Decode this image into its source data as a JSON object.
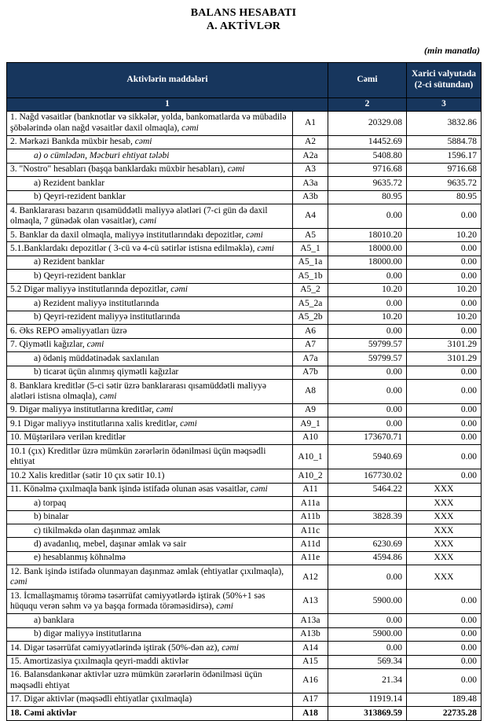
{
  "title": {
    "line1": "BALANS HESABATI",
    "line2": "A. AKTİVLƏR"
  },
  "unit_note": "(min manatla)",
  "colors": {
    "header_bg": "#17365D",
    "header_text": "#FFFFFF",
    "border": "#000000"
  },
  "table": {
    "headers": {
      "items": "Aktivlərin  maddələri",
      "total": "Cəmi",
      "foreign": "Xarici valyutada (2-ci sütundan)",
      "col1": "1",
      "col2": "2",
      "col3": "3"
    },
    "rows": [
      {
        "name": "1. Nağd vəsaitlər (banknotlar və sikkələr, yolda, bankomatlarda və mübadilə şöbələrində olan nağd vəsaitlər daxil olmaqla), ",
        "italic": "cəmi",
        "code": "A1",
        "total": "20329.08",
        "foreign": "3832.86"
      },
      {
        "name": "2. Mərkəzi Bankda müxbir hesab, ",
        "italic": "cəmi",
        "code": "A2",
        "total": "14452.69",
        "foreign": "5884.78"
      },
      {
        "name": "a) o cümlədən, Məcburi ehtiyat tələbi",
        "full_italic": true,
        "indent": true,
        "code": "A2a",
        "total": "5408.80",
        "foreign": "1596.17"
      },
      {
        "name": "3. \"Nostro\" hesabları (başqa banklardakı müxbir hesabları), ",
        "italic": "cəmi",
        "code": "A3",
        "total": "9716.68",
        "foreign": "9716.68"
      },
      {
        "name": "a) Rezident banklar",
        "indent": true,
        "code": "A3a",
        "total": "9635.72",
        "foreign": "9635.72"
      },
      {
        "name": "b) Qeyri-rezident banklar",
        "indent": true,
        "code": "A3b",
        "total": "80.95",
        "foreign": "80.95"
      },
      {
        "name": "4. Banklararası bazarın qısamüddətli maliyyə alətləri (7-ci gün də daxil olmaqla, 7 günədək olan vəsaitlər), ",
        "italic": "cəmi",
        "code": "A4",
        "total": "0.00",
        "foreign": "0.00"
      },
      {
        "name": "5. Banklar da daxil olmaqla, maliyyə institutlarındakı depozitlər, ",
        "italic": "cəmi",
        "code": "A5",
        "total": "18010.20",
        "foreign": "10.20"
      },
      {
        "name": "5.1.Banklardakı depozitlər ( 3-cü və 4-cü sətirlər istisna edilməklə), ",
        "italic": "cəmi",
        "code": "A5_1",
        "total": "18000.00",
        "foreign": "0.00"
      },
      {
        "name": "a) Rezident banklar",
        "indent": true,
        "code": "A5_1a",
        "total": "18000.00",
        "foreign": "0.00"
      },
      {
        "name": "b) Qeyri-rezident banklar",
        "indent": true,
        "code": "A5_1b",
        "total": "0.00",
        "foreign": "0.00"
      },
      {
        "name": "5.2 Digər maliyyə institutlarında depozitlər, ",
        "italic": "cəmi",
        "code": "A5_2",
        "total": "10.20",
        "foreign": "10.20"
      },
      {
        "name": "a) Rezident maliyyə institutlarında",
        "indent": true,
        "code": "A5_2a",
        "total": "0.00",
        "foreign": "0.00"
      },
      {
        "name": "b) Qeyri-rezident maliyyə institutlarında",
        "indent": true,
        "code": "A5_2b",
        "total": "10.20",
        "foreign": "10.20"
      },
      {
        "name": "6. Əks REPO əməliyyatları üzrə",
        "code": "A6",
        "total": "0.00",
        "foreign": "0.00"
      },
      {
        "name": "7. Qiymətli kağızlar, ",
        "italic": "cəmi",
        "code": "A7",
        "total": "59799.57",
        "foreign": "3101.29"
      },
      {
        "name": "a) ödəniş müddətinədək saxlanılan",
        "indent": true,
        "code": "A7a",
        "total": "59799.57",
        "foreign": "3101.29"
      },
      {
        "name": "b) ticarət üçün alınmış qiymətli kağızlar",
        "indent": true,
        "code": "A7b",
        "total": "0.00",
        "foreign": "0.00"
      },
      {
        "name": "8. Banklara kreditlər (5-ci sətir üzrə banklararası qısamüddətli maliyyə alətləri istisna olmaqla), ",
        "italic": "cəmi",
        "code": "A8",
        "total": "0.00",
        "foreign": "0.00"
      },
      {
        "name": "9. Digər maliyyə institutlarına kreditlər, ",
        "italic": "cəmi",
        "code": "A9",
        "total": "0.00",
        "foreign": "0.00"
      },
      {
        "name": "9.1 Digər maliyyə institutlarına xalis kreditlər, ",
        "italic": "cəmi",
        "code": "A9_1",
        "total": "0.00",
        "foreign": "0.00"
      },
      {
        "name": "10. Müştərilərə verilən kreditlər",
        "code": "A10",
        "total": "173670.71",
        "foreign": "0.00"
      },
      {
        "name": "10.1 (çıx) Kreditlər üzrə mümkün zərərlərin ödənilməsi üçün məqsədli ehtiyat",
        "code": "A10_1",
        "total": "5940.69",
        "foreign": "0.00"
      },
      {
        "name": "10.2 Xalis kreditlər (sətir 10 çıx sətir 10.1)",
        "code": "A10_2",
        "total": "167730.02",
        "foreign": "0.00"
      },
      {
        "name": "11. Könəlmə çıxılmaqla bank işində istifadə olunan əsas vəsaitlər, ",
        "italic": "cəmi",
        "code": "A11",
        "total": "5464.22",
        "foreign": "XXX"
      },
      {
        "name": "a) torpaq",
        "indent": true,
        "code": "A11a",
        "total": "",
        "foreign": "XXX"
      },
      {
        "name": "b) binalar",
        "indent": true,
        "code": "A11b",
        "total": "3828.39",
        "foreign": "XXX"
      },
      {
        "name": "c) tikilməkdə olan daşınmaz əmlak",
        "indent": true,
        "code": "A11c",
        "total": "",
        "foreign": "XXX"
      },
      {
        "name": "d) avadanlıq, mebel, daşınar əmlak və sair",
        "indent": true,
        "code": "A11d",
        "total": "6230.69",
        "foreign": "XXX"
      },
      {
        "name": "e) hesablanmış köhnəlmə",
        "indent": true,
        "code": "A11e",
        "total": "4594.86",
        "foreign": "XXX"
      },
      {
        "name": "12. Bank işində istifadə olunmayan daşınmaz əmlak (ehtiyatlar çıxılmaqla), ",
        "italic": "cəmi",
        "code": "A12",
        "total": "0.00",
        "foreign": "XXX"
      },
      {
        "name": "13. İcmallaşmamış törəmə təsərrüfat cəmiyyətlərdə iştirak (50%+1 səs hüququ verən səhm və ya başqa formada törəməsidirsə), ",
        "italic": "cəmi",
        "code": "A13",
        "total": "5900.00",
        "foreign": "0.00"
      },
      {
        "name": "a) banklara",
        "indent": true,
        "code": "A13a",
        "total": "0.00",
        "foreign": "0.00"
      },
      {
        "name": "b) digər maliyyə institutlarına",
        "indent": true,
        "code": "A13b",
        "total": "5900.00",
        "foreign": "0.00"
      },
      {
        "name": "14. Digər təsərrüfat cəmiyyətlərində iştirak (50%-dən az), ",
        "italic": "cəmi",
        "code": "A14",
        "total": "0.00",
        "foreign": "0.00"
      },
      {
        "name": "15. Amortizasiya çıxılmaqla qeyri-maddi aktivlər",
        "code": "A15",
        "total": "569.34",
        "foreign": "0.00"
      },
      {
        "name": "16. Balansdankənar aktivlər uzrə mümkün zərərlərin ödənilməsi üçün məqsədli ehtiyat",
        "code": "A16",
        "total": "21.34",
        "foreign": "0.00"
      },
      {
        "name": "17. Digər aktivlər (məqsədli ehtiyatlar çıxılmaqla)",
        "code": "A17",
        "total": "11919.14",
        "foreign": "189.48"
      },
      {
        "name": "18. Cəmi aktivlər",
        "bold": true,
        "code": "A18",
        "total": "313869.59",
        "foreign": "22735.28"
      }
    ]
  }
}
